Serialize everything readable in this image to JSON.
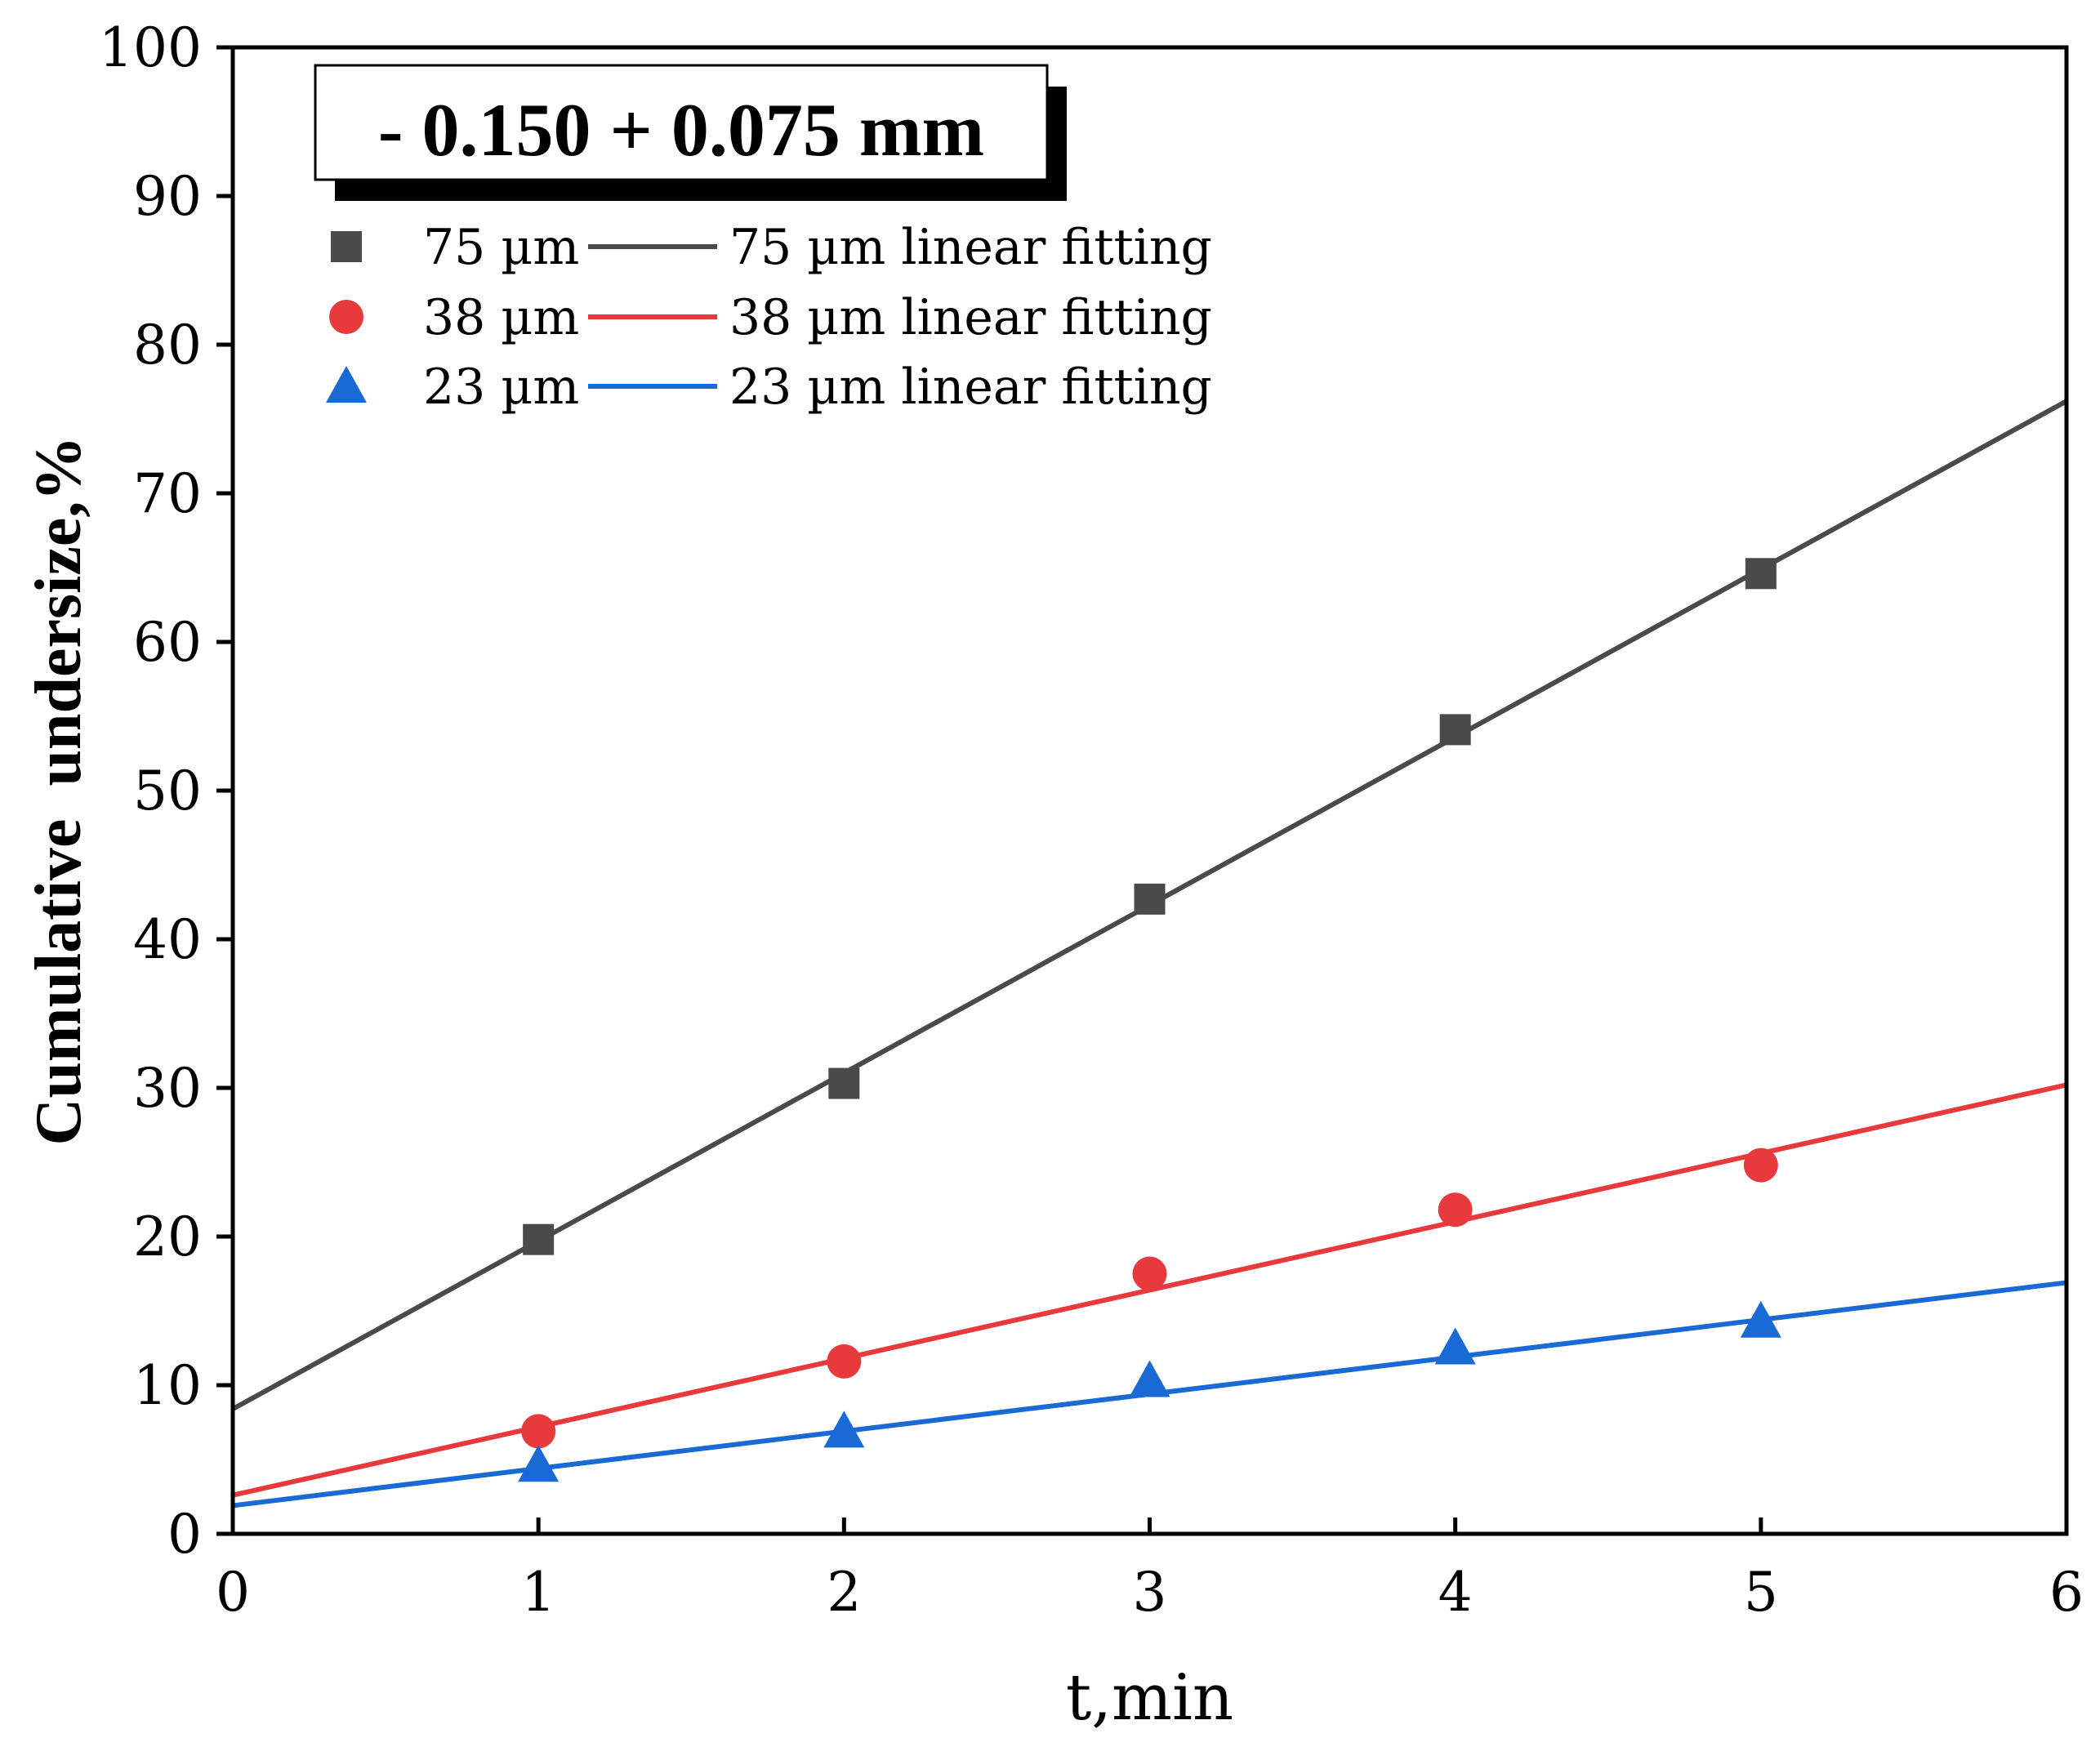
{
  "chart_data": {
    "type": "scatter",
    "title": "- 0.150 + 0.075 mm",
    "xlabel": "t,min",
    "ylabel": "Cumulative  undersize,%",
    "xlim": [
      0,
      6
    ],
    "ylim": [
      0,
      100
    ],
    "xticks": [
      "0",
      "1",
      "2",
      "3",
      "4",
      "5",
      "6"
    ],
    "yticks": [
      "0",
      "10",
      "20",
      "30",
      "40",
      "50",
      "60",
      "70",
      "80",
      "90",
      "100"
    ],
    "grid": false,
    "legend_position": "top-left",
    "series": [
      {
        "name": "75 µm",
        "fit_name": "75 µm linear fitting",
        "marker": "square",
        "color": "#4a4a4a",
        "x": [
          1,
          2,
          3,
          4,
          5
        ],
        "y": [
          19.8,
          30.3,
          42.7,
          54.1,
          64.6
        ],
        "fit": {
          "intercept": 8.4,
          "slope": 11.3
        }
      },
      {
        "name": "38 µm",
        "fit_name": "38 µm linear fitting",
        "marker": "circle",
        "color": "#e8393c",
        "x": [
          1,
          2,
          3,
          4,
          5
        ],
        "y": [
          6.9,
          11.6,
          17.5,
          21.8,
          24.8
        ],
        "fit": {
          "intercept": 2.6,
          "slope": 4.6
        }
      },
      {
        "name": "23 µm",
        "fit_name": "23 µm linear fitting",
        "marker": "triangle",
        "color": "#1a6ad6",
        "x": [
          1,
          2,
          3,
          4,
          5
        ],
        "y": [
          4.6,
          6.9,
          10.3,
          12.5,
          14.3
        ],
        "fit": {
          "intercept": 1.9,
          "slope": 2.5
        }
      }
    ]
  }
}
